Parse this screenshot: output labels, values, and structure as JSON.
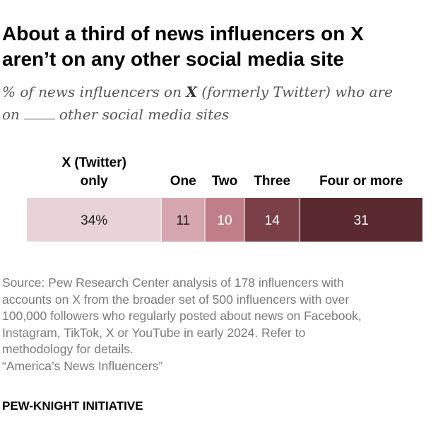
{
  "title_line1": "About a third of news influencers on X",
  "title_line2": "aren’t on any other social media site",
  "subtitle_pre": "% of news influencers on ",
  "subtitle_bold": "X",
  "subtitle_mid": " (formerly Twitter) who are",
  "subtitle_line2_pre": "on",
  "subtitle_line2_post": "other social media sites",
  "source_lines": [
    "Source: Pew Research Center analysis of 178 influencers with",
    "accounts on X from the broader set of 500 influencers with over",
    "100,000 followers who regularly posted about news on Facebook,",
    "Instagram, TikTok, X or YouTube in early 2024. Refer to",
    "methodology for details.",
    "“America’s News Influencers”"
  ],
  "footer": "PEW-KNIGHT INITIATIVE",
  "chart_data": {
    "type": "bar",
    "orientation": "horizontal-stacked",
    "title": "About a third of news influencers on X aren’t on any other social media site",
    "subtitle": "% of news influencers on X (formerly Twitter) who are on ____ other social media sites",
    "categories": [
      {
        "label_lines": [
          "X (Twitter)",
          "only"
        ],
        "value": 34,
        "value_label": "34%",
        "color": "#e8d4d7",
        "text_color": "#222222"
      },
      {
        "label_lines": [
          "One"
        ],
        "value": 11,
        "value_label": "11",
        "color": "#d6a7ae",
        "text_color": "#222222"
      },
      {
        "label_lines": [
          "Two"
        ],
        "value": 10,
        "value_label": "10",
        "color": "#c07f88",
        "text_color": "#ffffff"
      },
      {
        "label_lines": [
          "Three"
        ],
        "value": 14,
        "value_label": "14",
        "color": "#7b3f48",
        "text_color": "#ffffff"
      },
      {
        "label_lines": [
          "Four or more"
        ],
        "value": 31,
        "value_label": "31",
        "color": "#5a2930",
        "text_color": "#ffffff"
      }
    ],
    "total": 100
  }
}
